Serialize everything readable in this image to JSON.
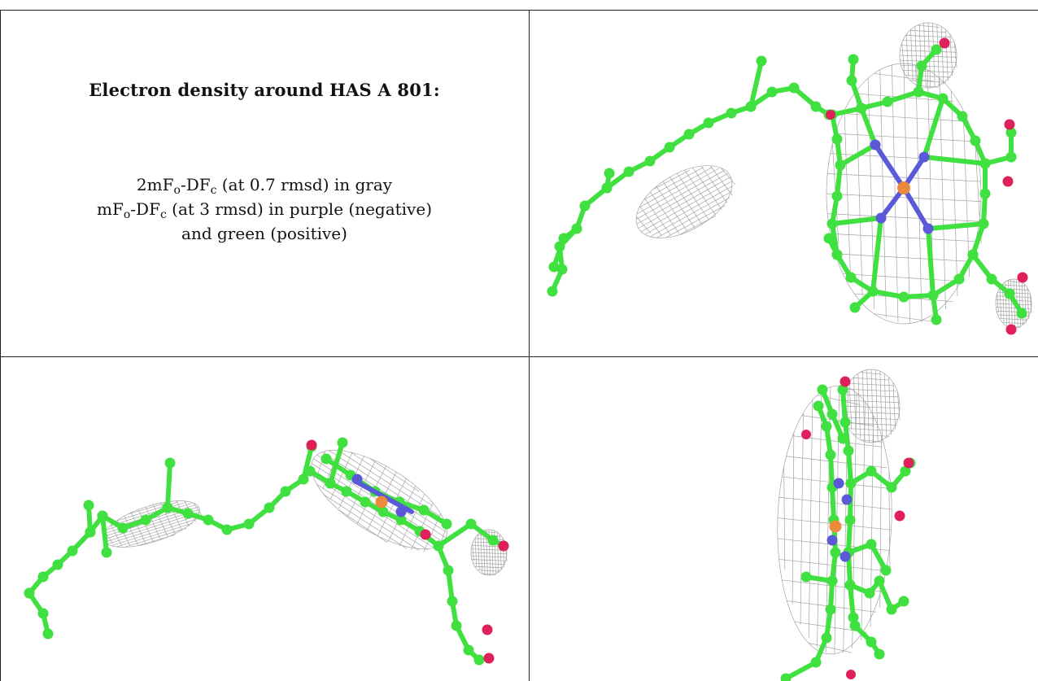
{
  "caption": {
    "title": "Electron density around HAS A 801:",
    "line1": {
      "prefix": "2mF",
      "sub1": "o",
      "mid": "-DF",
      "sub2": "c",
      "suffix": " (at 0.7 rmsd) in gray"
    },
    "line2": {
      "prefix": "mF",
      "sub1": "o",
      "mid": "-DF",
      "sub2": "c",
      "suffix": " (at 3 rmsd) in purple (negative)"
    },
    "line3": "and green (positive)"
  },
  "colors": {
    "carbon": "#3fe03f",
    "nitrogen": "#5a5ad8",
    "oxygen": "#e0205a",
    "iron": "#ec8a3c",
    "mesh": "#9a9a9a"
  },
  "panels": [
    {
      "name": "view-top-right",
      "subject": "heme-front-view"
    },
    {
      "name": "view-bottom-left",
      "subject": "heme-side-view"
    },
    {
      "name": "view-bottom-right",
      "subject": "heme-edge-view"
    }
  ]
}
